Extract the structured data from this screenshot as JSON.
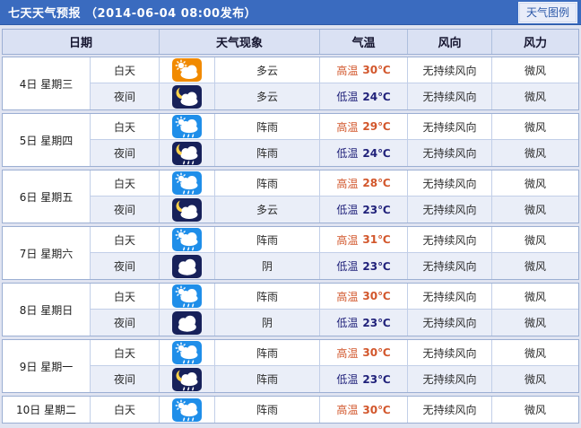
{
  "page": {
    "title": "七天天气预报 （2014-06-04 08:00发布）",
    "legend_button": "天气图例"
  },
  "table": {
    "columns": [
      "日期",
      "天气现象",
      "气温",
      "风向",
      "风力"
    ],
    "days": [
      {
        "date": "4日 星期三",
        "periods": [
          {
            "time": "白天",
            "icon": "sun-cloud-icon",
            "icon_style": "day-orange",
            "weather": "多云",
            "temp_label": "高温",
            "temp_value": "30℃",
            "temp_kind": "high",
            "wind_direction": "无持续风向",
            "wind_force": "微风",
            "shade": "day"
          },
          {
            "time": "夜间",
            "icon": "moon-cloud-icon",
            "icon_style": "night-navy",
            "weather": "多云",
            "temp_label": "低温",
            "temp_value": "24℃",
            "temp_kind": "low",
            "wind_direction": "无持续风向",
            "wind_force": "微风",
            "shade": "night"
          }
        ]
      },
      {
        "date": "5日 星期四",
        "periods": [
          {
            "time": "白天",
            "icon": "sun-cloud-rain-icon",
            "icon_style": "day-blue",
            "weather": "阵雨",
            "temp_label": "高温",
            "temp_value": "29℃",
            "temp_kind": "high",
            "wind_direction": "无持续风向",
            "wind_force": "微风",
            "shade": "day"
          },
          {
            "time": "夜间",
            "icon": "moon-cloud-rain-icon",
            "icon_style": "night-navy",
            "weather": "阵雨",
            "temp_label": "低温",
            "temp_value": "24℃",
            "temp_kind": "low",
            "wind_direction": "无持续风向",
            "wind_force": "微风",
            "shade": "night"
          }
        ]
      },
      {
        "date": "6日 星期五",
        "periods": [
          {
            "time": "白天",
            "icon": "sun-cloud-rain-icon",
            "icon_style": "day-blue",
            "weather": "阵雨",
            "temp_label": "高温",
            "temp_value": "28℃",
            "temp_kind": "high",
            "wind_direction": "无持续风向",
            "wind_force": "微风",
            "shade": "day"
          },
          {
            "time": "夜间",
            "icon": "moon-cloud-icon",
            "icon_style": "night-navy",
            "weather": "多云",
            "temp_label": "低温",
            "temp_value": "23℃",
            "temp_kind": "low",
            "wind_direction": "无持续风向",
            "wind_force": "微风",
            "shade": "night"
          }
        ]
      },
      {
        "date": "7日 星期六",
        "periods": [
          {
            "time": "白天",
            "icon": "sun-cloud-rain-icon",
            "icon_style": "day-blue",
            "weather": "阵雨",
            "temp_label": "高温",
            "temp_value": "31℃",
            "temp_kind": "high",
            "wind_direction": "无持续风向",
            "wind_force": "微风",
            "shade": "day"
          },
          {
            "time": "夜间",
            "icon": "cloud-icon",
            "icon_style": "night-navy",
            "weather": "阴",
            "temp_label": "低温",
            "temp_value": "23℃",
            "temp_kind": "low",
            "wind_direction": "无持续风向",
            "wind_force": "微风",
            "shade": "night"
          }
        ]
      },
      {
        "date": "8日 星期日",
        "periods": [
          {
            "time": "白天",
            "icon": "sun-cloud-rain-icon",
            "icon_style": "day-blue",
            "weather": "阵雨",
            "temp_label": "高温",
            "temp_value": "30℃",
            "temp_kind": "high",
            "wind_direction": "无持续风向",
            "wind_force": "微风",
            "shade": "day"
          },
          {
            "time": "夜间",
            "icon": "cloud-icon",
            "icon_style": "night-navy",
            "weather": "阴",
            "temp_label": "低温",
            "temp_value": "23℃",
            "temp_kind": "low",
            "wind_direction": "无持续风向",
            "wind_force": "微风",
            "shade": "night"
          }
        ]
      },
      {
        "date": "9日 星期一",
        "periods": [
          {
            "time": "白天",
            "icon": "sun-cloud-rain-icon",
            "icon_style": "day-blue",
            "weather": "阵雨",
            "temp_label": "高温",
            "temp_value": "30℃",
            "temp_kind": "high",
            "wind_direction": "无持续风向",
            "wind_force": "微风",
            "shade": "day"
          },
          {
            "time": "夜间",
            "icon": "moon-cloud-rain-icon",
            "icon_style": "night-navy",
            "weather": "阵雨",
            "temp_label": "低温",
            "temp_value": "23℃",
            "temp_kind": "low",
            "wind_direction": "无持续风向",
            "wind_force": "微风",
            "shade": "night"
          }
        ]
      },
      {
        "date": "10日 星期二",
        "periods": [
          {
            "time": "白天",
            "icon": "sun-cloud-rain-icon",
            "icon_style": "day-blue",
            "weather": "阵雨",
            "temp_label": "高温",
            "temp_value": "30℃",
            "temp_kind": "high",
            "wind_direction": "无持续风向",
            "wind_force": "微风",
            "shade": "day"
          }
        ]
      }
    ]
  },
  "colors": {
    "titlebar_blue": "#3a6bbf",
    "header_row_bg": "#dae1f3",
    "night_row_bg": "#eaeef8",
    "high_temp": "#d2562b",
    "low_temp": "#20217a",
    "icon_day_orange": "#f18a00",
    "icon_day_blue": "#1f8ee9",
    "icon_night_navy": "#17215a"
  }
}
